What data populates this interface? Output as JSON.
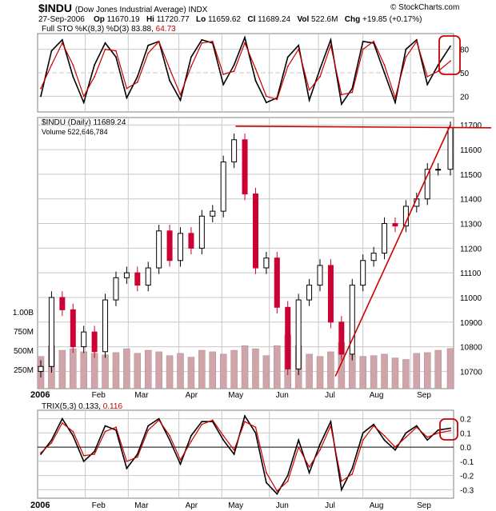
{
  "header": {
    "symbol": "$INDU",
    "description": "(Dow Jones Industrial Average) INDX",
    "date": "27-Sep-2006",
    "op_label": "Op",
    "op_value": "11670.19",
    "hi_label": "Hi",
    "hi_value": "11720.77",
    "lo_label": "Lo",
    "lo_value": "11659.62",
    "cl_label": "Cl",
    "cl_value": "11689.24",
    "vol_label": "Vol",
    "vol_value": "522.6M",
    "chg_label": "Chg",
    "chg_value": "+19.85 (+0.17%)",
    "brand": "© StockCharts.com"
  },
  "colors": {
    "up": "#000000",
    "down": "#cc0033",
    "signal": "#cc0000",
    "volume": "#cfa5aa",
    "grid": "#c8c8c8",
    "annotation": "#cc0000"
  },
  "chart_data": [
    {
      "type": "line",
      "panel": "stochastic",
      "legend_prefix": "Full STO %K(8,3) %D(3)",
      "k_value": "83.88",
      "d_value": "64.73",
      "yticks": [
        "80",
        "50",
        "20"
      ],
      "ylim": [
        0,
        100
      ],
      "x": [
        "2006-01-03",
        "2006-01-10",
        "2006-01-17",
        "2006-01-24",
        "2006-01-31",
        "2006-02-07",
        "2006-02-14",
        "2006-02-21",
        "2006-02-28",
        "2006-03-07",
        "2006-03-14",
        "2006-03-21",
        "2006-03-28",
        "2006-04-04",
        "2006-04-11",
        "2006-04-18",
        "2006-04-25",
        "2006-05-02",
        "2006-05-09",
        "2006-05-16",
        "2006-05-23",
        "2006-05-30",
        "2006-06-06",
        "2006-06-13",
        "2006-06-20",
        "2006-06-27",
        "2006-07-04",
        "2006-07-11",
        "2006-07-18",
        "2006-07-25",
        "2006-08-01",
        "2006-08-08",
        "2006-08-15",
        "2006-08-22",
        "2006-08-29",
        "2006-09-05",
        "2006-09-12",
        "2006-09-19",
        "2006-09-27"
      ],
      "series": [
        {
          "name": "%K(8,3)",
          "values": [
            20,
            78,
            92,
            45,
            12,
            60,
            88,
            70,
            18,
            45,
            85,
            90,
            40,
            15,
            70,
            92,
            88,
            35,
            60,
            95,
            40,
            12,
            18,
            70,
            85,
            15,
            55,
            92,
            10,
            30,
            90,
            88,
            50,
            12,
            80,
            92,
            35,
            60,
            84
          ]
        },
        {
          "name": "%D(3)",
          "values": [
            30,
            60,
            88,
            60,
            20,
            45,
            80,
            78,
            30,
            38,
            75,
            90,
            55,
            22,
            58,
            88,
            90,
            48,
            52,
            88,
            55,
            20,
            16,
            58,
            80,
            28,
            45,
            85,
            22,
            25,
            80,
            90,
            60,
            18,
            70,
            90,
            45,
            52,
            65
          ]
        }
      ]
    },
    {
      "type": "candlestick",
      "panel": "price",
      "legend": "$INDU (Daily) 11689.24",
      "volume_legend": "Volume 522,646,784",
      "yticks": [
        "11700",
        "11600",
        "11500",
        "11400",
        "11300",
        "11200",
        "11100",
        "11000",
        "10900",
        "10800",
        "10700"
      ],
      "ylim": [
        10630,
        11730
      ],
      "volume_ticks": [
        "1.00B",
        "750M",
        "500M",
        "250M"
      ],
      "volume_ylim": [
        0,
        1250
      ],
      "x": [
        "2006-01-03",
        "2006-01-10",
        "2006-01-17",
        "2006-01-24",
        "2006-01-31",
        "2006-02-07",
        "2006-02-14",
        "2006-02-21",
        "2006-02-28",
        "2006-03-07",
        "2006-03-14",
        "2006-03-21",
        "2006-03-28",
        "2006-04-04",
        "2006-04-11",
        "2006-04-18",
        "2006-04-25",
        "2006-05-02",
        "2006-05-09",
        "2006-05-16",
        "2006-05-23",
        "2006-05-30",
        "2006-06-06",
        "2006-06-13",
        "2006-06-20",
        "2006-06-27",
        "2006-07-04",
        "2006-07-11",
        "2006-07-18",
        "2006-07-25",
        "2006-08-01",
        "2006-08-08",
        "2006-08-15",
        "2006-08-22",
        "2006-08-29",
        "2006-09-05",
        "2006-09-12",
        "2006-09-19",
        "2006-09-27"
      ],
      "close": [
        10720,
        11000,
        10950,
        10800,
        10860,
        10780,
        10990,
        11080,
        11100,
        11050,
        11120,
        11270,
        11150,
        11260,
        11200,
        11330,
        11350,
        11550,
        11640,
        11420,
        11120,
        11160,
        10960,
        10710,
        10990,
        11050,
        11130,
        10900,
        10770,
        11050,
        11150,
        11180,
        11300,
        11290,
        11370,
        11400,
        11520,
        11520,
        11689
      ],
      "volume": [
        420,
        560,
        500,
        520,
        480,
        460,
        440,
        470,
        520,
        460,
        500,
        480,
        430,
        460,
        410,
        500,
        480,
        450,
        500,
        560,
        520,
        430,
        560,
        700,
        560,
        450,
        420,
        480,
        600,
        440,
        420,
        430,
        450,
        400,
        380,
        460,
        470,
        500,
        523
      ],
      "trendline_start": {
        "x": "2006-07-14",
        "y": 10680
      },
      "trendline_end": {
        "x": "2006-09-27",
        "y": 11700
      },
      "resistance_y": 11695
    },
    {
      "type": "line",
      "panel": "trix",
      "legend_prefix": "TRIX(5,3)",
      "trix_value": "0.133",
      "signal_value": "0.116",
      "yticks": [
        "0.2",
        "0.1",
        "0.0",
        "-0.1",
        "-0.2",
        "-0.3"
      ],
      "ylim": [
        -0.36,
        0.26
      ],
      "x": [
        "2006-01-03",
        "2006-01-10",
        "2006-01-17",
        "2006-01-24",
        "2006-01-31",
        "2006-02-07",
        "2006-02-14",
        "2006-02-21",
        "2006-02-28",
        "2006-03-07",
        "2006-03-14",
        "2006-03-21",
        "2006-03-28",
        "2006-04-04",
        "2006-04-11",
        "2006-04-18",
        "2006-04-25",
        "2006-05-02",
        "2006-05-09",
        "2006-05-16",
        "2006-05-23",
        "2006-05-30",
        "2006-06-06",
        "2006-06-13",
        "2006-06-20",
        "2006-06-27",
        "2006-07-04",
        "2006-07-11",
        "2006-07-18",
        "2006-07-25",
        "2006-08-01",
        "2006-08-08",
        "2006-08-15",
        "2006-08-22",
        "2006-08-29",
        "2006-09-05",
        "2006-09-12",
        "2006-09-19",
        "2006-09-27"
      ],
      "series": [
        {
          "name": "TRIX(5,3)",
          "values": [
            -0.05,
            0.05,
            0.2,
            0.08,
            -0.1,
            -0.03,
            0.15,
            0.12,
            -0.15,
            -0.05,
            0.15,
            0.2,
            0.05,
            -0.12,
            0.08,
            0.18,
            0.18,
            0.05,
            -0.05,
            0.22,
            0.1,
            -0.25,
            -0.33,
            -0.2,
            0.05,
            -0.18,
            0.02,
            0.18,
            -0.3,
            -0.15,
            0.1,
            0.16,
            0.05,
            -0.02,
            0.1,
            0.15,
            0.05,
            0.12,
            0.133
          ]
        },
        {
          "name": "Signal",
          "values": [
            -0.04,
            0.03,
            0.17,
            0.11,
            -0.06,
            -0.05,
            0.11,
            0.14,
            -0.1,
            -0.07,
            0.12,
            0.19,
            0.08,
            -0.09,
            0.04,
            0.16,
            0.19,
            0.08,
            -0.02,
            0.18,
            0.14,
            -0.18,
            -0.31,
            -0.24,
            0.0,
            -0.14,
            -0.02,
            0.15,
            -0.24,
            -0.19,
            0.05,
            0.15,
            0.08,
            0.0,
            0.07,
            0.14,
            0.07,
            0.1,
            0.116
          ]
        }
      ]
    }
  ],
  "x_axis": {
    "year": "2006",
    "months": [
      "Feb",
      "Mar",
      "Apr",
      "May",
      "Jun",
      "Jul",
      "Aug",
      "Sep"
    ]
  }
}
